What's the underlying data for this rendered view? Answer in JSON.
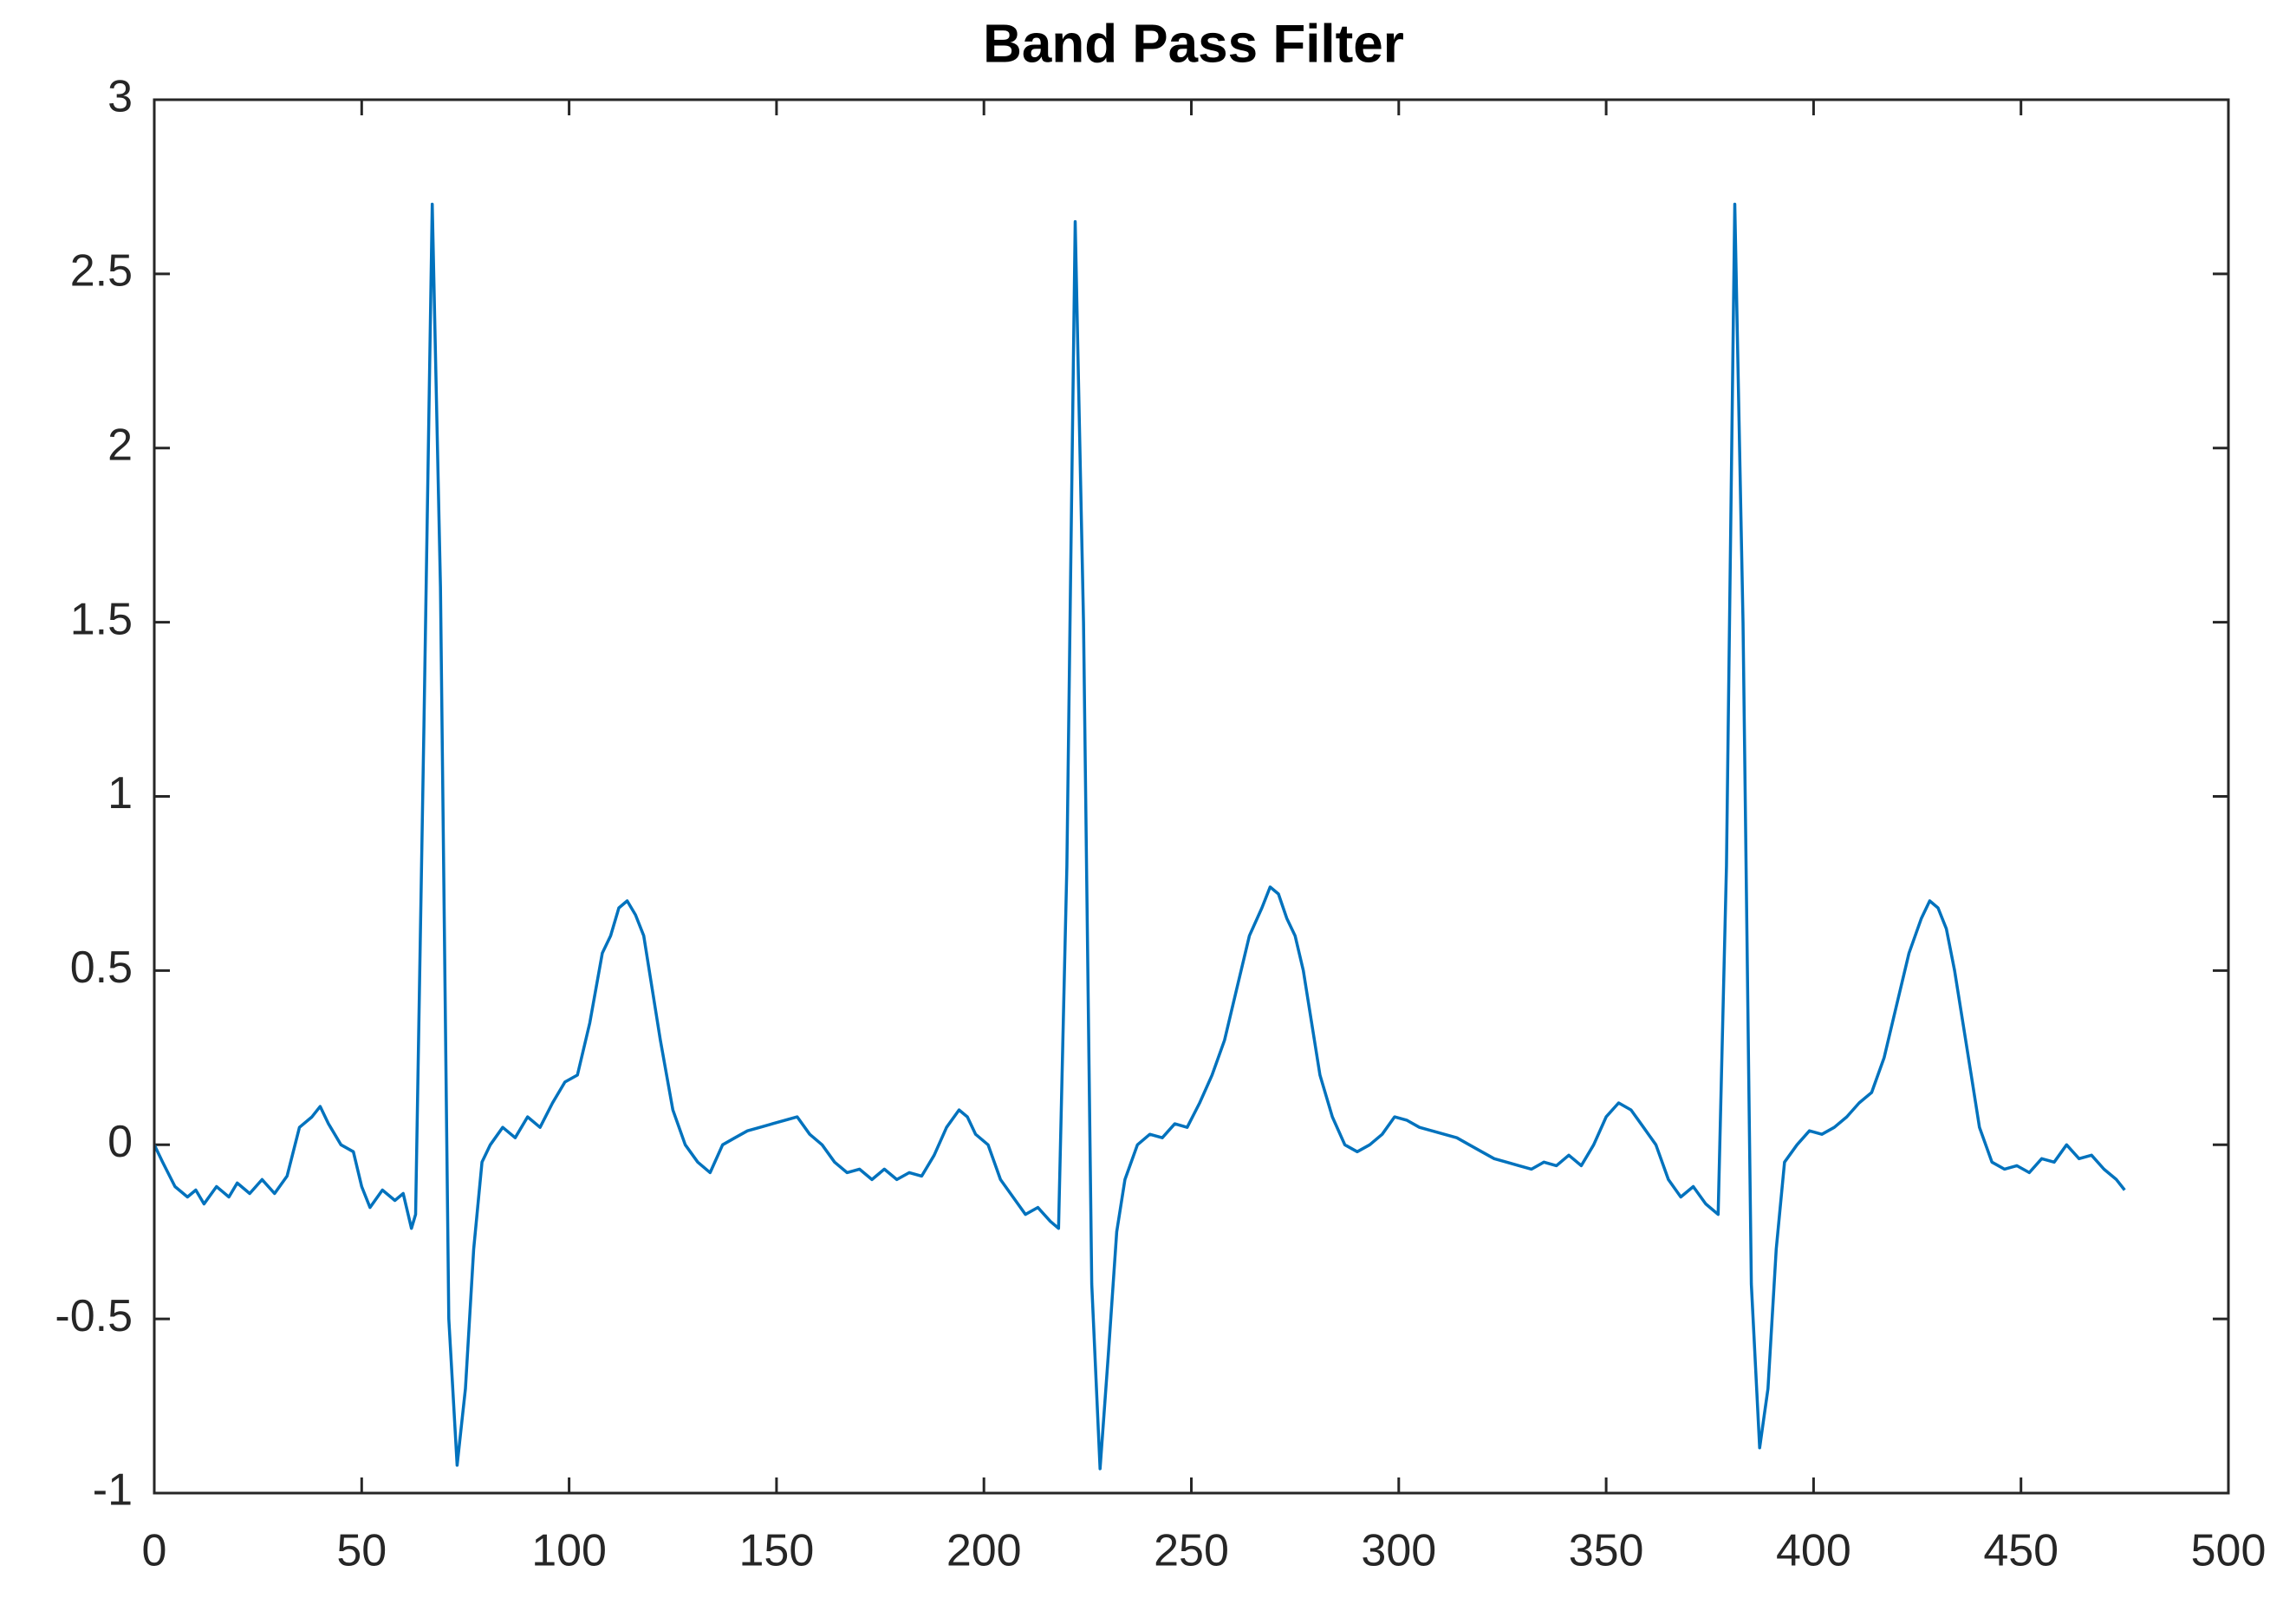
{
  "chart_data": {
    "type": "line",
    "title": "Band Pass Filter",
    "x": [
      0,
      2,
      5,
      8,
      10,
      12,
      15,
      18,
      20,
      23,
      26,
      29,
      32,
      35,
      38,
      40,
      42,
      45,
      48,
      50,
      52,
      55,
      58,
      60,
      62,
      63,
      65,
      67,
      69,
      71,
      73,
      75,
      77,
      79,
      81,
      84,
      87,
      90,
      93,
      96,
      99,
      102,
      105,
      108,
      110,
      112,
      114,
      116,
      118,
      120,
      122,
      125,
      128,
      131,
      134,
      137,
      140,
      143,
      146,
      149,
      152,
      155,
      158,
      161,
      164,
      167,
      170,
      173,
      176,
      179,
      182,
      185,
      188,
      191,
      194,
      196,
      198,
      201,
      204,
      207,
      210,
      213,
      216,
      218,
      220,
      222,
      224,
      226,
      228,
      230,
      232,
      234,
      237,
      240,
      243,
      246,
      249,
      252,
      255,
      258,
      261,
      264,
      267,
      269,
      271,
      273,
      275,
      277,
      279,
      281,
      284,
      287,
      290,
      293,
      296,
      299,
      302,
      305,
      308,
      311,
      314,
      317,
      320,
      323,
      326,
      329,
      332,
      335,
      338,
      341,
      344,
      347,
      350,
      353,
      356,
      359,
      362,
      365,
      368,
      371,
      374,
      377,
      379,
      381,
      383,
      385,
      387,
      389,
      391,
      393,
      396,
      399,
      402,
      405,
      408,
      411,
      414,
      417,
      420,
      423,
      426,
      428,
      430,
      432,
      434,
      436,
      438,
      440,
      443,
      446,
      449,
      452,
      455,
      458,
      461,
      464,
      467,
      470,
      473,
      475
    ],
    "series": [
      {
        "color": "#0072bd",
        "values": [
          0.0,
          -0.05,
          -0.12,
          -0.15,
          -0.13,
          -0.17,
          -0.12,
          -0.15,
          -0.11,
          -0.14,
          -0.1,
          -0.14,
          -0.09,
          0.05,
          0.08,
          0.11,
          0.06,
          0.0,
          -0.02,
          -0.12,
          -0.18,
          -0.13,
          -0.16,
          -0.14,
          -0.24,
          -0.2,
          1.2,
          2.7,
          1.6,
          -0.5,
          -0.92,
          -0.7,
          -0.3,
          -0.05,
          0.0,
          0.05,
          0.02,
          0.08,
          0.05,
          0.12,
          0.18,
          0.2,
          0.35,
          0.55,
          0.6,
          0.68,
          0.7,
          0.66,
          0.6,
          0.45,
          0.3,
          0.1,
          0.0,
          -0.05,
          -0.08,
          0.0,
          0.02,
          0.04,
          0.05,
          0.06,
          0.07,
          0.08,
          0.03,
          0.0,
          -0.05,
          -0.08,
          -0.07,
          -0.1,
          -0.07,
          -0.1,
          -0.08,
          -0.09,
          -0.03,
          0.05,
          0.1,
          0.08,
          0.03,
          0.0,
          -0.1,
          -0.15,
          -0.2,
          -0.18,
          -0.22,
          -0.24,
          0.8,
          2.65,
          1.5,
          -0.4,
          -0.93,
          -0.6,
          -0.25,
          -0.1,
          0.0,
          0.03,
          0.02,
          0.06,
          0.05,
          0.12,
          0.2,
          0.3,
          0.45,
          0.6,
          0.68,
          0.74,
          0.72,
          0.65,
          0.6,
          0.5,
          0.35,
          0.2,
          0.08,
          0.0,
          -0.02,
          0.0,
          0.03,
          0.08,
          0.07,
          0.05,
          0.04,
          0.03,
          0.02,
          0.0,
          -0.02,
          -0.04,
          -0.05,
          -0.06,
          -0.07,
          -0.05,
          -0.06,
          -0.03,
          -0.06,
          0.0,
          0.08,
          0.12,
          0.1,
          0.05,
          0.0,
          -0.1,
          -0.15,
          -0.12,
          -0.17,
          -0.2,
          0.8,
          2.7,
          1.5,
          -0.4,
          -0.87,
          -0.7,
          -0.3,
          -0.05,
          0.0,
          0.04,
          0.03,
          0.05,
          0.08,
          0.12,
          0.15,
          0.25,
          0.4,
          0.55,
          0.65,
          0.7,
          0.68,
          0.62,
          0.5,
          0.35,
          0.2,
          0.05,
          -0.05,
          -0.07,
          -0.06,
          -0.08,
          -0.04,
          -0.05,
          0.0,
          -0.04,
          -0.03,
          -0.07,
          -0.1,
          -0.13
        ]
      }
    ],
    "xlim": [
      0,
      500
    ],
    "xticks": [
      0,
      50,
      100,
      150,
      200,
      250,
      300,
      350,
      400,
      450,
      500
    ],
    "ylim": [
      -1,
      3
    ],
    "yticks": [
      -1,
      -0.5,
      0,
      0.5,
      1,
      1.5,
      2,
      2.5,
      3
    ]
  }
}
